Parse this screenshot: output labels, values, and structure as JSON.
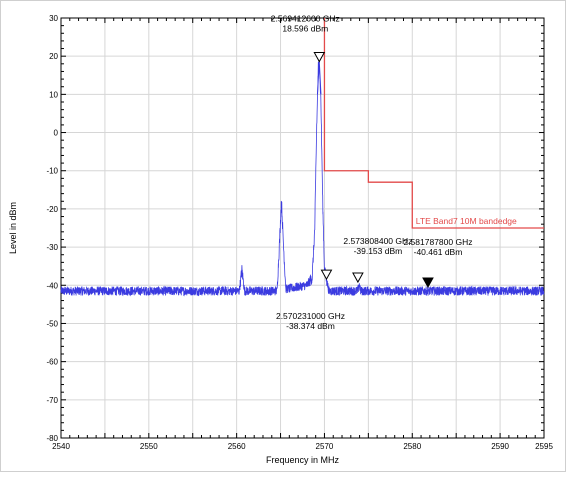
{
  "chart_data": {
    "type": "line",
    "xlabel": "Frequency in MHz",
    "ylabel": "Level in dBm",
    "xlim": [
      2540,
      2595
    ],
    "ylim": [
      -80,
      30
    ],
    "x_ticks": [
      2540,
      2550,
      2560,
      2570,
      2580,
      2590,
      2595
    ],
    "y_ticks": [
      30,
      20,
      10,
      0,
      -10,
      -20,
      -30,
      -40,
      -50,
      -60,
      -70,
      -80
    ],
    "grid": true,
    "series": [
      {
        "color": "#3b3be0",
        "noise_floor": -41.5,
        "points": [
          [
            2540,
            -41.5
          ],
          [
            2560.3,
            -41.5
          ],
          [
            2560.6,
            -36
          ],
          [
            2560.9,
            -41.5
          ],
          [
            2564.6,
            -41.5
          ],
          [
            2564.9,
            -28
          ],
          [
            2565.1,
            -17.5
          ],
          [
            2565.3,
            -28
          ],
          [
            2565.6,
            -41
          ],
          [
            2568.0,
            -40
          ],
          [
            2568.6,
            -38
          ],
          [
            2568.9,
            -25
          ],
          [
            2569.1,
            0
          ],
          [
            2569.3,
            17
          ],
          [
            2569.41,
            18.6
          ],
          [
            2569.6,
            8
          ],
          [
            2569.8,
            -18
          ],
          [
            2570.0,
            -36
          ],
          [
            2570.23,
            -38.4
          ],
          [
            2570.5,
            -41.5
          ],
          [
            2573.8,
            -41.5
          ],
          [
            2573.95,
            -39.6
          ],
          [
            2574.1,
            -41.5
          ],
          [
            2595,
            -41.5
          ]
        ]
      }
    ],
    "limit_line": {
      "label": "LTE Band7 10M bandedge",
      "color": "#e34a4a",
      "points": [
        [
          2570,
          30
        ],
        [
          2570,
          -10
        ],
        [
          2575,
          -10
        ],
        [
          2575,
          -13
        ],
        [
          2580,
          -13
        ],
        [
          2580,
          -25
        ],
        [
          2595,
          -25
        ]
      ]
    },
    "markers": [
      {
        "x": 2569.4126,
        "y": 18.596,
        "label_freq": "2.569412600 GHz",
        "label_level": "18.596 dBm",
        "filled": false
      },
      {
        "x": 2570.231,
        "y": -38.374,
        "label_freq": "2.570231000 GHz",
        "label_level": "-38.374 dBm",
        "filled": false
      },
      {
        "x": 2573.8084,
        "y": -39.153,
        "label_freq": "2.573808400 GHz",
        "label_level": "-39.153 dBm",
        "filled": false
      },
      {
        "x": 2581.7878,
        "y": -40.461,
        "label_freq": "2.581787800 GHz",
        "label_level": "-40.461 dBm",
        "filled": true
      }
    ]
  }
}
